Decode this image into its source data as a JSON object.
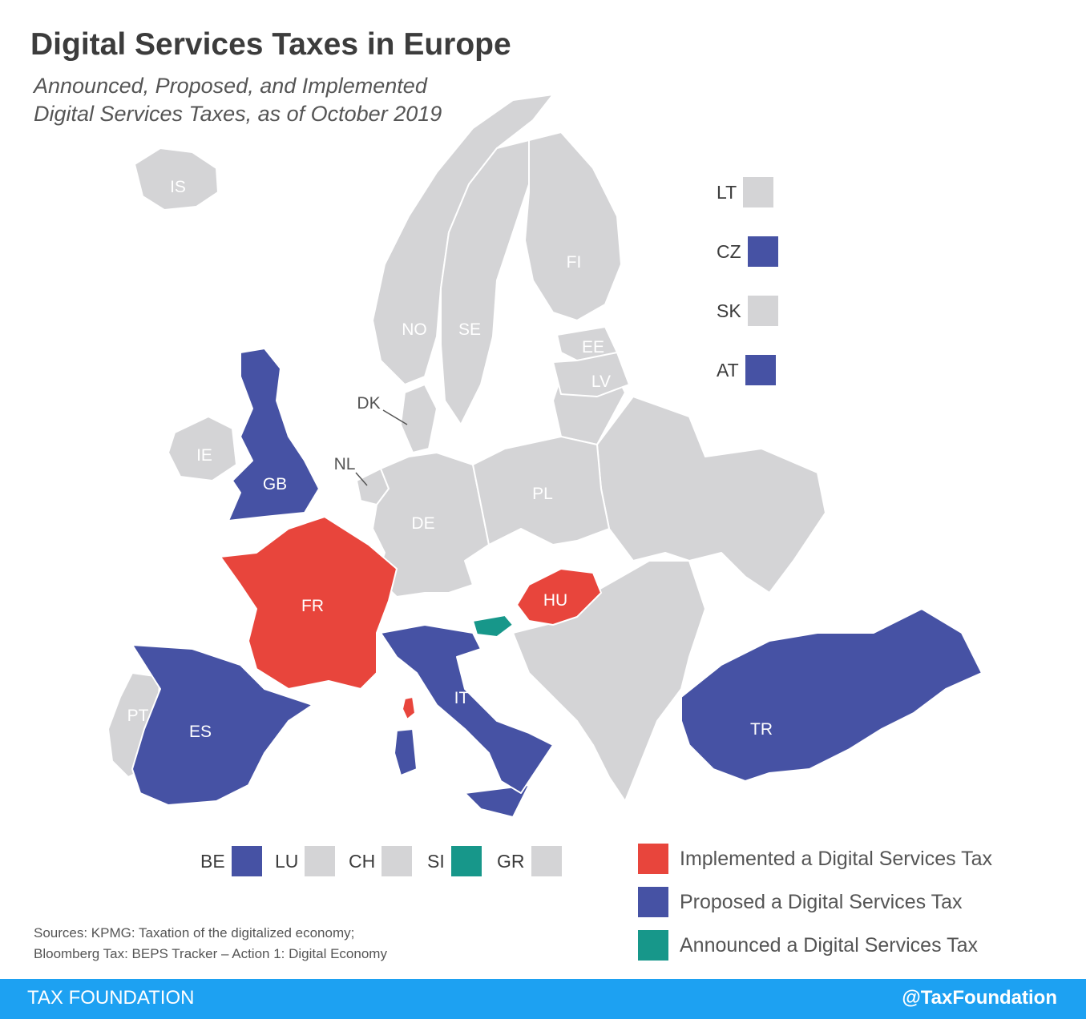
{
  "title": "Digital Services Taxes in Europe",
  "subtitle": [
    "Announced, Proposed, and Implemented",
    "Digital Services Taxes, as of October 2019"
  ],
  "colors": {
    "implemented": "#e8453c",
    "proposed": "#4652a4",
    "announced": "#17978a",
    "none": "#d4d4d6",
    "border": "#ffffff",
    "footer": "#1da1f2"
  },
  "countries": [
    {
      "code": "IS",
      "status": "none"
    },
    {
      "code": "NO",
      "status": "none"
    },
    {
      "code": "SE",
      "status": "none"
    },
    {
      "code": "FI",
      "status": "none"
    },
    {
      "code": "EE",
      "status": "none"
    },
    {
      "code": "LV",
      "status": "none"
    },
    {
      "code": "DK",
      "status": "none"
    },
    {
      "code": "IE",
      "status": "none"
    },
    {
      "code": "GB",
      "status": "proposed"
    },
    {
      "code": "NL",
      "status": "none"
    },
    {
      "code": "DE",
      "status": "none"
    },
    {
      "code": "PL",
      "status": "none"
    },
    {
      "code": "FR",
      "status": "implemented"
    },
    {
      "code": "HU",
      "status": "implemented"
    },
    {
      "code": "PT",
      "status": "none"
    },
    {
      "code": "ES",
      "status": "proposed"
    },
    {
      "code": "IT",
      "status": "proposed"
    },
    {
      "code": "TR",
      "status": "proposed"
    }
  ],
  "inset_right": [
    {
      "code": "LT",
      "status": "none"
    },
    {
      "code": "CZ",
      "status": "proposed"
    },
    {
      "code": "SK",
      "status": "none"
    },
    {
      "code": "AT",
      "status": "proposed"
    }
  ],
  "inset_bottom": [
    {
      "code": "BE",
      "status": "proposed"
    },
    {
      "code": "LU",
      "status": "none"
    },
    {
      "code": "CH",
      "status": "none"
    },
    {
      "code": "SI",
      "status": "announced"
    },
    {
      "code": "GR",
      "status": "none"
    }
  ],
  "legend": [
    {
      "label": "Implemented a Digital Services Tax",
      "status": "implemented"
    },
    {
      "label": "Proposed a Digital Services Tax",
      "status": "proposed"
    },
    {
      "label": "Announced a Digital Services Tax",
      "status": "announced"
    }
  ],
  "sources": [
    "Sources: KPMG: Taxation of the digitalized economy;",
    "Bloomberg Tax: BEPS Tracker – Action 1: Digital Economy"
  ],
  "footer": {
    "brand": "TAX FOUNDATION",
    "handle": "@TaxFoundation"
  }
}
